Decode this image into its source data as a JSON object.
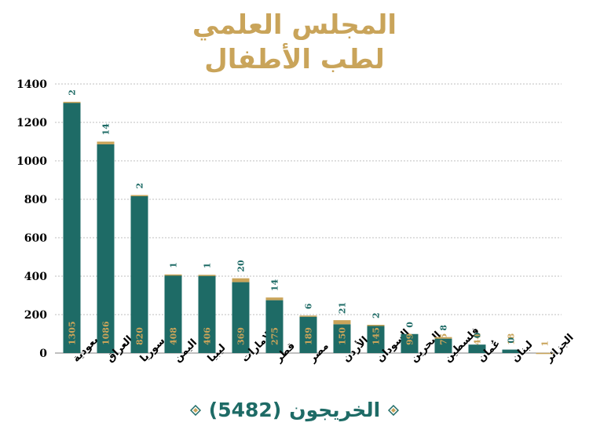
{
  "title": {
    "line1": "المجلس العلمي",
    "line2": "لطب الأطفال"
  },
  "footer": {
    "label": "الخريجون",
    "total": "(5482)"
  },
  "colors": {
    "primary": "#1E6B66",
    "secondary": "#C9A45A",
    "grid": "#BFBFBF",
    "axis_text": "#000000",
    "inner_label": "#C9A45A"
  },
  "chart_data": {
    "type": "bar",
    "stacked": true,
    "categories": [
      "السعودية",
      "العراق",
      "سوريا",
      "اليمن",
      "ليبيا",
      "الإمارات",
      "قطر",
      "مصر",
      "الأردن",
      "السودان",
      "البحرين",
      "فلسطين",
      "عُمان",
      "لبنان",
      "الجزائر"
    ],
    "series": [
      {
        "color": "#1E6B66",
        "values": [
          1305,
          1086,
          820,
          408,
          406,
          369,
          275,
          189,
          150,
          145,
          99,
          75,
          44,
          18,
          0
        ]
      },
      {
        "color": "#C9A45A",
        "values": [
          2,
          14,
          2,
          1,
          1,
          20,
          14,
          6,
          21,
          2,
          0,
          8,
          0,
          0,
          1
        ]
      }
    ],
    "ylim": [
      0,
      1400
    ],
    "yticks": [
      0,
      200,
      400,
      600,
      800,
      1000,
      1200,
      1400
    ],
    "grid": true,
    "xlabel": "",
    "ylabel": ""
  }
}
